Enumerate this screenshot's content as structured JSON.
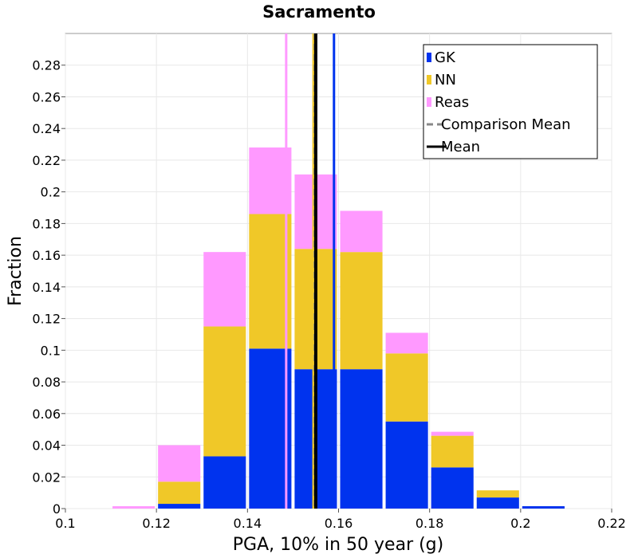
{
  "chart_data": {
    "type": "bar",
    "stacked": true,
    "title": "Sacramento",
    "xlabel": "PGA, 10% in 50 year (g)",
    "ylabel": "Fraction",
    "xlim": [
      0.1,
      0.22
    ],
    "ylim": [
      0,
      0.3
    ],
    "xticks": [
      "0.1",
      "0.12",
      "0.14",
      "0.16",
      "0.18",
      "0.2",
      "0.22"
    ],
    "yticks": [
      "0",
      "0.02",
      "0.04",
      "0.06",
      "0.08",
      "0.1",
      "0.12",
      "0.14",
      "0.16",
      "0.18",
      "0.2",
      "0.22",
      "0.24",
      "0.26",
      "0.28"
    ],
    "grid": true,
    "legend_position": "top-right",
    "bin_width": 0.01,
    "bin_centers": [
      0.115,
      0.125,
      0.135,
      0.145,
      0.155,
      0.165,
      0.175,
      0.185,
      0.195,
      0.205
    ],
    "series": [
      {
        "name": "GK",
        "color": "#0033ee",
        "values": [
          0.0,
          0.003,
          0.033,
          0.101,
          0.088,
          0.088,
          0.055,
          0.026,
          0.007,
          0.0015
        ]
      },
      {
        "name": "NN",
        "color": "#f0c828",
        "values": [
          0.0,
          0.014,
          0.082,
          0.085,
          0.076,
          0.074,
          0.043,
          0.02,
          0.0045,
          0.0
        ]
      },
      {
        "name": "Reas",
        "color": "#ff99ff",
        "values": [
          0.0015,
          0.023,
          0.047,
          0.042,
          0.047,
          0.026,
          0.013,
          0.0025,
          0.0,
          0.0
        ]
      }
    ],
    "vertical_lines": [
      {
        "series": "Reas",
        "x": 0.1485,
        "color": "#ff99ff",
        "style": "solid"
      },
      {
        "series": "NN",
        "x": 0.1545,
        "color": "#f0c828",
        "style": "solid"
      },
      {
        "series": "GK",
        "x": 0.159,
        "color": "#0033ee",
        "style": "solid"
      },
      {
        "series": "Comparison Mean",
        "x": 0.1548,
        "color": "#888888",
        "style": "dashed"
      },
      {
        "series": "Mean",
        "x": 0.155,
        "color": "#000000",
        "style": "solid"
      }
    ],
    "legend": [
      {
        "label": "GK",
        "color": "#0033ee",
        "marker": "square"
      },
      {
        "label": "NN",
        "color": "#f0c828",
        "marker": "square"
      },
      {
        "label": "Reas",
        "color": "#ff99ff",
        "marker": "square"
      },
      {
        "label": "Comparison Mean",
        "color": "#888888",
        "marker": "dashed-line"
      },
      {
        "label": "Mean",
        "color": "#000000",
        "marker": "solid-line"
      }
    ]
  }
}
